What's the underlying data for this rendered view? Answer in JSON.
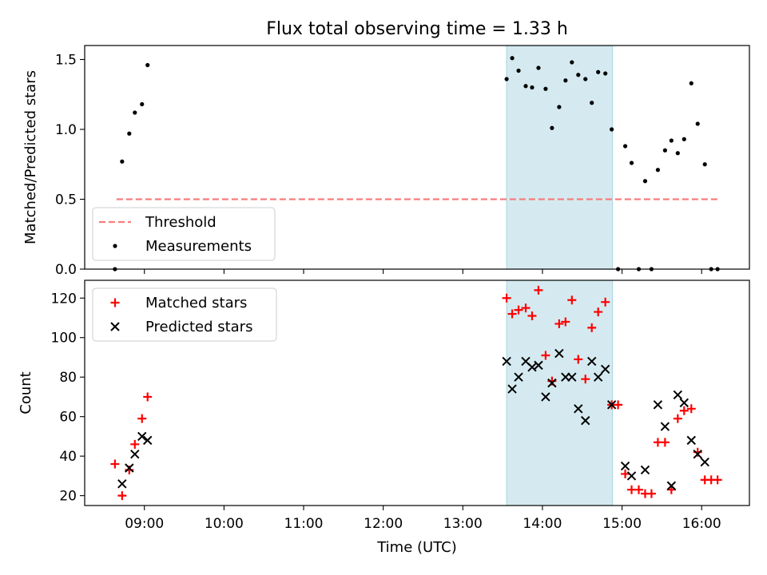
{
  "chart_data": [
    {
      "type": "scatter",
      "panel": "top",
      "title": "Flux total observing time = 1.33 h",
      "xlabel": "",
      "ylabel": "Matched/Predicted stars",
      "xlim_hours": [
        8.25,
        16.6
      ],
      "ylim": [
        0,
        1.6
      ],
      "yticks": [
        0.0,
        0.5,
        1.0,
        1.5
      ],
      "ytick_labels": [
        "0.0",
        "0.5",
        "1.0",
        "1.5"
      ],
      "grid": false,
      "legend_position": "lower-left",
      "series": [
        {
          "name": "Threshold",
          "style": "dashed-line",
          "color": "#f87c7c",
          "x": [
            8.65,
            16.22
          ],
          "y": [
            0.5,
            0.5
          ]
        },
        {
          "name": "Measurements",
          "style": "dot",
          "color": "#000000",
          "x": [
            8.63,
            8.72,
            8.81,
            8.88,
            8.97,
            9.04,
            13.55,
            13.62,
            13.7,
            13.79,
            13.87,
            13.95,
            14.04,
            14.12,
            14.21,
            14.29,
            14.37,
            14.45,
            14.54,
            14.62,
            14.7,
            14.79,
            14.87,
            14.95,
            15.04,
            15.12,
            15.21,
            15.29,
            15.37,
            15.45,
            15.54,
            15.62,
            15.7,
            15.78,
            15.87,
            15.95,
            16.04,
            16.12,
            16.2
          ],
          "y": [
            0.0,
            0.77,
            0.97,
            1.12,
            1.18,
            1.46,
            1.36,
            1.51,
            1.42,
            1.31,
            1.3,
            1.44,
            1.29,
            1.01,
            1.16,
            1.35,
            1.48,
            1.39,
            1.36,
            1.19,
            1.41,
            1.4,
            1.0,
            0.0,
            0.88,
            0.76,
            0.0,
            0.63,
            0.0,
            0.71,
            0.85,
            0.92,
            0.83,
            0.93,
            1.33,
            1.04,
            0.75,
            0.0,
            0.0
          ]
        }
      ],
      "shaded_region": {
        "x_start": 13.55,
        "x_end": 14.88,
        "color": "#d4eaf0"
      }
    },
    {
      "type": "scatter",
      "panel": "bottom",
      "title": "",
      "xlabel": "Time (UTC)",
      "ylabel": "Count",
      "xlim_hours": [
        8.25,
        16.6
      ],
      "ylim": [
        15,
        129
      ],
      "xticks_hours": [
        9,
        10,
        11,
        12,
        13,
        14,
        15,
        16
      ],
      "xtick_labels": [
        "09:00",
        "10:00",
        "11:00",
        "12:00",
        "13:00",
        "14:00",
        "15:00",
        "16:00"
      ],
      "yticks": [
        20,
        40,
        60,
        80,
        100,
        120
      ],
      "ytick_labels": [
        "20",
        "40",
        "60",
        "80",
        "100",
        "120"
      ],
      "grid": false,
      "legend_position": "top-left",
      "series": [
        {
          "name": "Matched stars",
          "style": "plus",
          "color": "#ff0000",
          "x": [
            8.63,
            8.72,
            8.81,
            8.88,
            8.97,
            9.04,
            13.55,
            13.62,
            13.7,
            13.79,
            13.87,
            13.95,
            14.04,
            14.12,
            14.21,
            14.29,
            14.37,
            14.45,
            14.54,
            14.62,
            14.7,
            14.79,
            14.87,
            14.95,
            15.04,
            15.12,
            15.21,
            15.29,
            15.37,
            15.45,
            15.54,
            15.62,
            15.7,
            15.78,
            15.87,
            15.95,
            16.04,
            16.12,
            16.2
          ],
          "y": [
            36,
            20,
            33,
            46,
            59,
            70,
            120,
            112,
            114,
            115,
            111,
            124,
            91,
            78,
            107,
            108,
            119,
            89,
            79,
            105,
            113,
            118,
            66,
            66,
            31,
            23,
            23,
            21,
            21,
            47,
            47,
            23,
            59,
            63,
            64,
            42,
            28,
            28,
            28
          ]
        },
        {
          "name": "Predicted stars",
          "style": "x",
          "color": "#000000",
          "x": [
            8.72,
            8.81,
            8.88,
            8.97,
            9.04,
            13.55,
            13.62,
            13.7,
            13.79,
            13.87,
            13.95,
            14.04,
            14.12,
            14.21,
            14.29,
            14.37,
            14.45,
            14.54,
            14.62,
            14.7,
            14.79,
            14.87,
            15.04,
            15.12,
            15.29,
            15.45,
            15.54,
            15.62,
            15.7,
            15.78,
            15.87,
            15.95,
            16.04
          ],
          "y": [
            26,
            34,
            41,
            50,
            48,
            88,
            74,
            80,
            88,
            85,
            86,
            70,
            77,
            92,
            80,
            80,
            64,
            58,
            88,
            80,
            84,
            66,
            35,
            30,
            33,
            66,
            55,
            25,
            71,
            67,
            48,
            41,
            37
          ]
        }
      ],
      "shaded_region": {
        "x_start": 13.55,
        "x_end": 14.88,
        "color": "#d4eaf0"
      }
    }
  ]
}
